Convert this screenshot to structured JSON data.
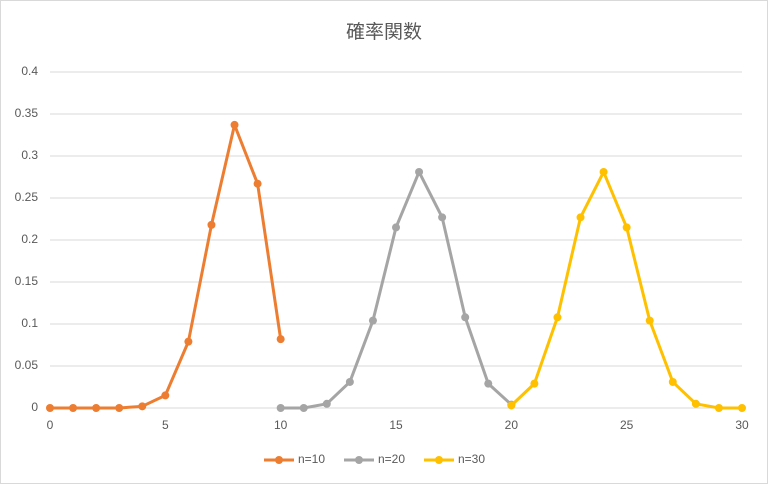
{
  "chart_data": {
    "type": "line",
    "title": "確率関数",
    "xlim": [
      0,
      30
    ],
    "xticks": [
      0,
      5,
      10,
      15,
      20,
      25,
      30
    ],
    "ylim": [
      0,
      0.4
    ],
    "yticks": [
      0,
      0.05,
      0.1,
      0.15,
      0.2,
      0.25,
      0.3,
      0.35,
      0.4
    ],
    "grid": true,
    "legend": "bottom",
    "series": [
      {
        "name": "n=10",
        "color": "#ED7D31",
        "x": [
          0,
          1,
          2,
          3,
          4,
          5,
          6,
          7,
          8,
          9,
          10
        ],
        "values": [
          0,
          0,
          0,
          0,
          0.002,
          0.015,
          0.079,
          0.218,
          0.337,
          0.267,
          0.082
        ]
      },
      {
        "name": "n=20",
        "color": "#A5A5A5",
        "x": [
          10,
          11,
          12,
          13,
          14,
          15,
          16,
          17,
          18,
          19,
          20
        ],
        "values": [
          0,
          0,
          0.005,
          0.031,
          0.104,
          0.215,
          0.281,
          0.227,
          0.108,
          0.029,
          0.004
        ]
      },
      {
        "name": "n=30",
        "color": "#FFC000",
        "x": [
          20,
          21,
          22,
          23,
          24,
          25,
          26,
          27,
          28,
          29,
          30
        ],
        "values": [
          0.003,
          0.029,
          0.108,
          0.227,
          0.281,
          0.215,
          0.104,
          0.031,
          0.005,
          0,
          0
        ]
      }
    ]
  }
}
